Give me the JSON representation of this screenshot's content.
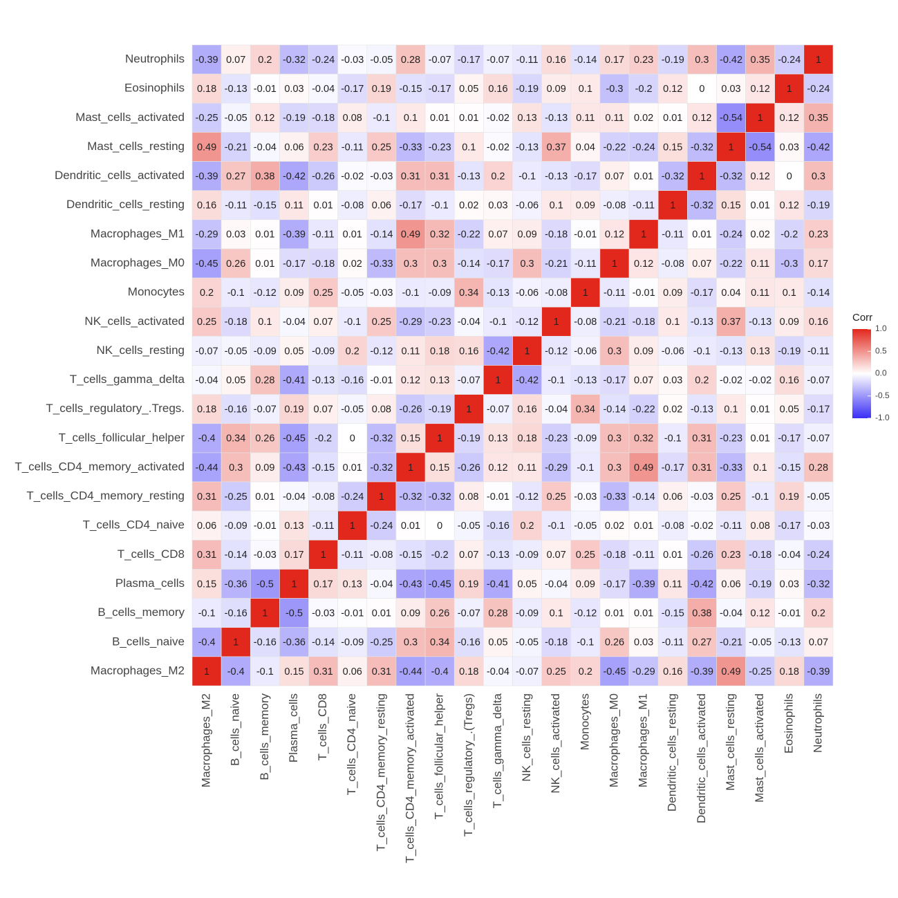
{
  "chart_data": {
    "type": "heatmap",
    "x_categories": [
      "Macrophages_M2",
      "B_cells_naive",
      "B_cells_memory",
      "Plasma_cells",
      "T_cells_CD8",
      "T_cells_CD4_naive",
      "T_cells_CD4_memory_resting",
      "T_cells_CD4_memory_activated",
      "T_cells_follicular_helper",
      "T_cells_regulatory_.(Tregs)",
      "T_cells_gamma_delta",
      "NK_cells_resting",
      "NK_cells_activated",
      "Monocytes",
      "Macrophages_M0",
      "Macrophages_M1",
      "Dendritic_cells_resting",
      "Dendritic_cells_activated",
      "Mast_cells_resting",
      "Mast_cells_activated",
      "Eosinophils",
      "Neutrophils"
    ],
    "y_categories": [
      "Neutrophils",
      "Eosinophils",
      "Mast_cells_activated",
      "Mast_cells_resting",
      "Dendritic_cells_activated",
      "Dendritic_cells_resting",
      "Macrophages_M1",
      "Macrophages_M0",
      "Monocytes",
      "NK_cells_activated",
      "NK_cells_resting",
      "T_cells_gamma_delta",
      "T_cells_regulatory_.Tregs.",
      "T_cells_follicular_helper",
      "T_cells_CD4_memory_activated",
      "T_cells_CD4_memory_resting",
      "T_cells_CD4_naive",
      "T_cells_CD8",
      "Plasma_cells",
      "B_cells_memory",
      "B_cells_naive",
      "Macrophages_M2"
    ],
    "values": [
      [
        -0.39,
        0.07,
        0.2,
        -0.32,
        -0.24,
        -0.03,
        -0.05,
        0.28,
        -0.07,
        -0.17,
        -0.07,
        -0.11,
        0.16,
        -0.14,
        0.17,
        0.23,
        -0.19,
        0.3,
        -0.42,
        0.35,
        -0.24,
        1
      ],
      [
        0.18,
        -0.13,
        -0.01,
        0.03,
        -0.04,
        -0.17,
        0.19,
        -0.15,
        -0.17,
        0.05,
        0.16,
        -0.19,
        0.09,
        0.1,
        -0.3,
        -0.2,
        0.12,
        0,
        0.03,
        0.12,
        1,
        -0.24
      ],
      [
        -0.25,
        -0.05,
        0.12,
        -0.19,
        -0.18,
        0.08,
        -0.1,
        0.1,
        0.01,
        0.01,
        -0.02,
        0.13,
        -0.13,
        0.11,
        0.11,
        0.02,
        0.01,
        0.12,
        -0.54,
        1,
        0.12,
        0.35
      ],
      [
        0.49,
        -0.21,
        -0.04,
        0.06,
        0.23,
        -0.11,
        0.25,
        -0.33,
        -0.23,
        0.1,
        -0.02,
        -0.13,
        0.37,
        0.04,
        -0.22,
        -0.24,
        0.15,
        -0.32,
        1,
        -0.54,
        0.03,
        -0.42
      ],
      [
        -0.39,
        0.27,
        0.38,
        -0.42,
        -0.26,
        -0.02,
        -0.03,
        0.31,
        0.31,
        -0.13,
        0.2,
        -0.1,
        -0.13,
        -0.17,
        0.07,
        0.01,
        -0.32,
        1,
        -0.32,
        0.12,
        0,
        0.3
      ],
      [
        0.16,
        -0.11,
        -0.15,
        0.11,
        0.01,
        -0.08,
        0.06,
        -0.17,
        -0.1,
        0.02,
        0.03,
        -0.06,
        0.1,
        0.09,
        -0.08,
        -0.11,
        1,
        -0.32,
        0.15,
        0.01,
        0.12,
        -0.19
      ],
      [
        -0.29,
        0.03,
        0.01,
        -0.39,
        -0.11,
        0.01,
        -0.14,
        0.49,
        0.32,
        -0.22,
        0.07,
        0.09,
        -0.18,
        -0.01,
        0.12,
        1,
        -0.11,
        0.01,
        -0.24,
        0.02,
        -0.2,
        0.23
      ],
      [
        -0.45,
        0.26,
        0.01,
        -0.17,
        -0.18,
        0.02,
        -0.33,
        0.3,
        0.3,
        -0.14,
        -0.17,
        0.3,
        -0.21,
        -0.11,
        1,
        0.12,
        -0.08,
        0.07,
        -0.22,
        0.11,
        -0.3,
        0.17
      ],
      [
        0.2,
        -0.1,
        -0.12,
        0.09,
        0.25,
        -0.05,
        -0.03,
        -0.1,
        -0.09,
        0.34,
        -0.13,
        -0.06,
        -0.08,
        1,
        -0.11,
        -0.01,
        0.09,
        -0.17,
        0.04,
        0.11,
        0.1,
        -0.14
      ],
      [
        0.25,
        -0.18,
        0.1,
        -0.04,
        0.07,
        -0.1,
        0.25,
        -0.29,
        -0.23,
        -0.04,
        -0.1,
        -0.12,
        1,
        -0.08,
        -0.21,
        -0.18,
        0.1,
        -0.13,
        0.37,
        -0.13,
        0.09,
        0.16
      ],
      [
        -0.07,
        -0.05,
        -0.09,
        0.05,
        -0.09,
        0.2,
        -0.12,
        0.11,
        0.18,
        0.16,
        -0.42,
        1,
        -0.12,
        -0.06,
        0.3,
        0.09,
        -0.06,
        -0.1,
        -0.13,
        0.13,
        -0.19,
        -0.11
      ],
      [
        -0.04,
        0.05,
        0.28,
        -0.41,
        -0.13,
        -0.16,
        -0.01,
        0.12,
        0.13,
        -0.07,
        1,
        -0.42,
        -0.1,
        -0.13,
        -0.17,
        0.07,
        0.03,
        0.2,
        -0.02,
        -0.02,
        0.16,
        -0.07
      ],
      [
        0.18,
        -0.16,
        -0.07,
        0.19,
        0.07,
        -0.05,
        0.08,
        -0.26,
        -0.19,
        1,
        -0.07,
        0.16,
        -0.04,
        0.34,
        -0.14,
        -0.22,
        0.02,
        -0.13,
        0.1,
        0.01,
        0.05,
        -0.17
      ],
      [
        -0.4,
        0.34,
        0.26,
        -0.45,
        -0.2,
        0,
        -0.32,
        0.15,
        1,
        -0.19,
        0.13,
        0.18,
        -0.23,
        -0.09,
        0.3,
        0.32,
        -0.1,
        0.31,
        -0.23,
        0.01,
        -0.17,
        -0.07
      ],
      [
        -0.44,
        0.3,
        0.09,
        -0.43,
        -0.15,
        0.01,
        -0.32,
        1,
        0.15,
        -0.26,
        0.12,
        0.11,
        -0.29,
        -0.1,
        0.3,
        0.49,
        -0.17,
        0.31,
        -0.33,
        0.1,
        -0.15,
        0.28
      ],
      [
        0.31,
        -0.25,
        0.01,
        -0.04,
        -0.08,
        -0.24,
        1,
        -0.32,
        -0.32,
        0.08,
        -0.01,
        -0.12,
        0.25,
        -0.03,
        -0.33,
        -0.14,
        0.06,
        -0.03,
        0.25,
        -0.1,
        0.19,
        -0.05
      ],
      [
        0.06,
        -0.09,
        -0.01,
        0.13,
        -0.11,
        1,
        -0.24,
        0.01,
        0,
        -0.05,
        -0.16,
        0.2,
        -0.1,
        -0.05,
        0.02,
        0.01,
        -0.08,
        -0.02,
        -0.11,
        0.08,
        -0.17,
        -0.03
      ],
      [
        0.31,
        -0.14,
        -0.03,
        0.17,
        1,
        -0.11,
        -0.08,
        -0.15,
        -0.2,
        0.07,
        -0.13,
        -0.09,
        0.07,
        0.25,
        -0.18,
        -0.11,
        0.01,
        -0.26,
        0.23,
        -0.18,
        -0.04,
        -0.24
      ],
      [
        0.15,
        -0.36,
        -0.5,
        1,
        0.17,
        0.13,
        -0.04,
        -0.43,
        -0.45,
        0.19,
        -0.41,
        0.05,
        -0.04,
        0.09,
        -0.17,
        -0.39,
        0.11,
        -0.42,
        0.06,
        -0.19,
        0.03,
        -0.32
      ],
      [
        -0.1,
        -0.16,
        1,
        -0.5,
        -0.03,
        -0.01,
        0.01,
        0.09,
        0.26,
        -0.07,
        0.28,
        -0.09,
        0.1,
        -0.12,
        0.01,
        0.01,
        -0.15,
        0.38,
        -0.04,
        0.12,
        -0.01,
        0.2
      ],
      [
        -0.4,
        1,
        -0.16,
        -0.36,
        -0.14,
        -0.09,
        -0.25,
        0.3,
        0.34,
        -0.16,
        0.05,
        -0.05,
        -0.18,
        -0.1,
        0.26,
        0.03,
        -0.11,
        0.27,
        -0.21,
        -0.05,
        -0.13,
        0.07
      ],
      [
        1,
        -0.4,
        -0.1,
        0.15,
        0.31,
        0.06,
        0.31,
        -0.44,
        -0.4,
        0.18,
        -0.04,
        -0.07,
        0.25,
        0.2,
        -0.45,
        -0.29,
        0.16,
        -0.39,
        0.49,
        -0.25,
        0.18,
        -0.39
      ]
    ],
    "colorbar_title": "Corr",
    "zlim": [
      -1,
      1
    ],
    "zticks": [
      {
        "value": 1,
        "label": "1.0"
      },
      0.5,
      {
        "value": 0,
        "label": "0.0"
      },
      -0.5,
      {
        "value": -1,
        "label": "-1.0"
      }
    ],
    "colors": {
      "low": "#3a2ef5",
      "mid": "#ffffff",
      "high": "#e2271c"
    }
  }
}
